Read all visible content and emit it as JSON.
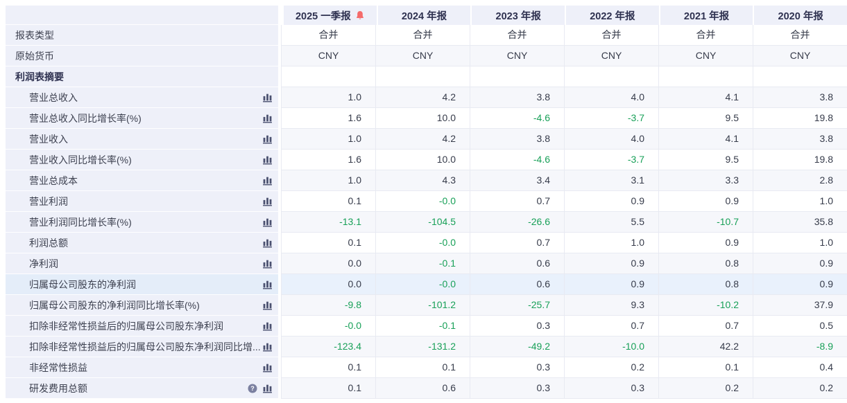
{
  "colors": {
    "negative_value": "#18a058",
    "bell_icon": "#f56b6b",
    "panel_lavender": "#eef0f9",
    "row_highlight": "#e9f1fc",
    "icon_slate": "#4b5170"
  },
  "table": {
    "columns": [
      "2025 一季报",
      "2024 年报",
      "2023 年报",
      "2022 年报",
      "2021 年报",
      "2020 年报"
    ],
    "current_column_has_alert_bell": "2025 一季报",
    "meta_rows": [
      {
        "label": "报表类型",
        "values": [
          "合并",
          "合并",
          "合并",
          "合并",
          "合并",
          "合并"
        ]
      },
      {
        "label": "原始货币",
        "values": [
          "CNY",
          "CNY",
          "CNY",
          "CNY",
          "CNY",
          "CNY"
        ]
      }
    ],
    "section": {
      "label": "利润表摘要"
    },
    "rows": [
      {
        "label": "营业总收入",
        "values": [
          "1.0",
          "4.2",
          "3.8",
          "4.0",
          "4.1",
          "3.8"
        ]
      },
      {
        "label": "营业总收入同比增长率(%)",
        "values": [
          "1.6",
          "10.0",
          "-4.6",
          "-3.7",
          "9.5",
          "19.8"
        ]
      },
      {
        "label": "营业收入",
        "values": [
          "1.0",
          "4.2",
          "3.8",
          "4.0",
          "4.1",
          "3.8"
        ]
      },
      {
        "label": "营业收入同比增长率(%)",
        "values": [
          "1.6",
          "10.0",
          "-4.6",
          "-3.7",
          "9.5",
          "19.8"
        ]
      },
      {
        "label": "营业总成本",
        "values": [
          "1.0",
          "4.3",
          "3.4",
          "3.1",
          "3.3",
          "2.8"
        ]
      },
      {
        "label": "营业利润",
        "values": [
          "0.1",
          "-0.0",
          "0.7",
          "0.9",
          "0.9",
          "1.0"
        ]
      },
      {
        "label": "营业利润同比增长率(%)",
        "values": [
          "-13.1",
          "-104.5",
          "-26.6",
          "5.5",
          "-10.7",
          "35.8"
        ]
      },
      {
        "label": "利润总额",
        "values": [
          "0.1",
          "-0.0",
          "0.7",
          "1.0",
          "0.9",
          "1.0"
        ]
      },
      {
        "label": "净利润",
        "values": [
          "0.0",
          "-0.1",
          "0.6",
          "0.9",
          "0.8",
          "0.9"
        ]
      },
      {
        "label": "归属母公司股东的净利润",
        "values": [
          "0.0",
          "-0.0",
          "0.6",
          "0.9",
          "0.8",
          "0.9"
        ],
        "highlighted": true
      },
      {
        "label": "归属母公司股东的净利润同比增长率(%)",
        "values": [
          "-9.8",
          "-101.2",
          "-25.7",
          "9.3",
          "-10.2",
          "37.9"
        ]
      },
      {
        "label": "扣除非经常性损益后的归属母公司股东净利润",
        "values": [
          "-0.0",
          "-0.1",
          "0.3",
          "0.7",
          "0.7",
          "0.5"
        ]
      },
      {
        "label": "扣除非经常性损益后的归属母公司股东净利润同比增...",
        "values": [
          "-123.4",
          "-131.2",
          "-49.2",
          "-10.0",
          "42.2",
          "-8.9"
        ]
      },
      {
        "label": "非经常性损益",
        "values": [
          "0.1",
          "0.1",
          "0.3",
          "0.2",
          "0.1",
          "0.4"
        ]
      },
      {
        "label": "研发费用总额",
        "values": [
          "0.1",
          "0.6",
          "0.3",
          "0.3",
          "0.2",
          "0.2"
        ],
        "help": true
      }
    ]
  }
}
